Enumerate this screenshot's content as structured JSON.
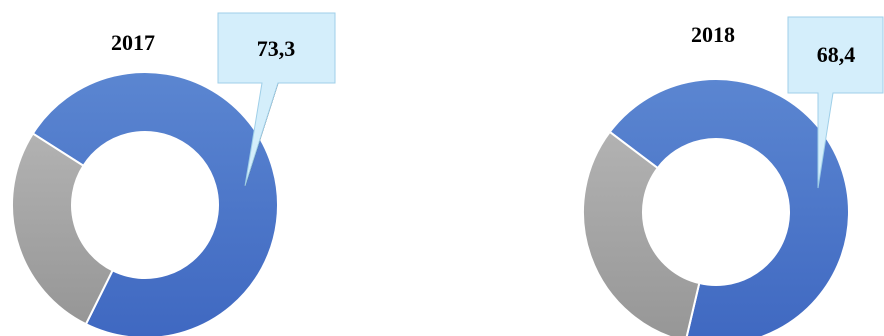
{
  "chart_data": [
    {
      "type": "pie",
      "style": "donut",
      "title": "2017",
      "slices": [
        {
          "label": "",
          "value": 73.3,
          "color": "#4472c4"
        },
        {
          "label": "",
          "value": 26.7,
          "color": "#a5a5a5"
        }
      ],
      "data_labels": [
        {
          "slice": 0,
          "text": "73,3"
        }
      ],
      "callout_color": "#d4eefb"
    },
    {
      "type": "pie",
      "style": "donut",
      "title": "2018",
      "slices": [
        {
          "label": "",
          "value": 68.4,
          "color": "#4472c4"
        },
        {
          "label": "",
          "value": 31.6,
          "color": "#a5a5a5"
        }
      ],
      "data_labels": [
        {
          "slice": 0,
          "text": "68,4"
        }
      ],
      "callout_color": "#d4eefb"
    }
  ]
}
